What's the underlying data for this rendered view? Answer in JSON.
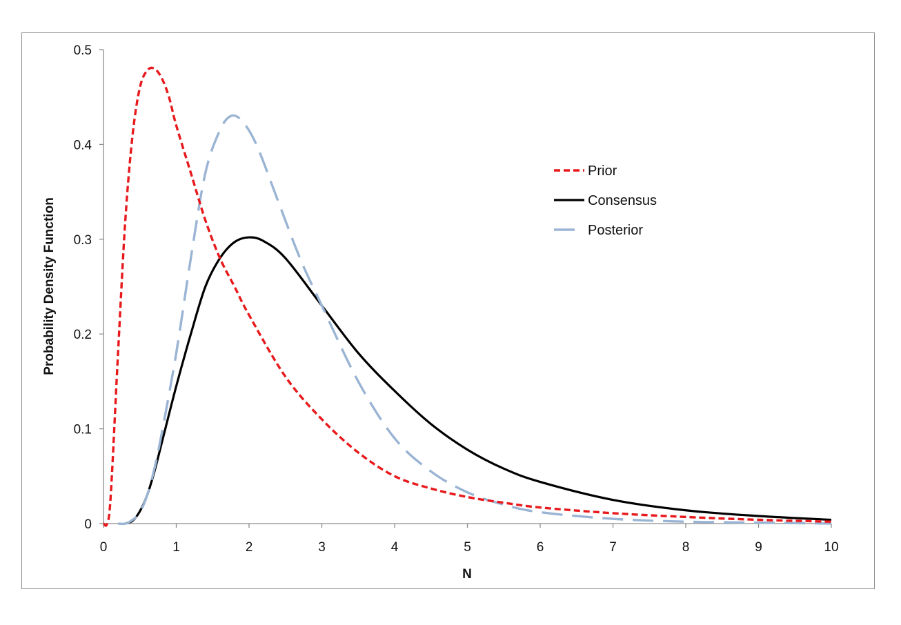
{
  "chart_data": {
    "type": "line",
    "xlabel": "N",
    "ylabel": "Probability Density Function",
    "xlim": [
      0,
      10
    ],
    "ylim": [
      0,
      0.5
    ],
    "x_ticks": [
      "0",
      "1",
      "2",
      "3",
      "4",
      "5",
      "6",
      "7",
      "8",
      "9",
      "10"
    ],
    "y_ticks": [
      "0",
      "0.1",
      "0.2",
      "0.3",
      "0.4",
      "0.5"
    ],
    "grid": false,
    "legend_position": "right",
    "series": [
      {
        "name": "Prior",
        "color": "#e8191c",
        "style": "short-dash",
        "x": [
          0,
          0.05,
          0.1,
          0.2,
          0.3,
          0.4,
          0.5,
          0.6,
          0.7,
          0.8,
          0.9,
          1.0,
          1.2,
          1.4,
          1.6,
          1.8,
          2.0,
          2.5,
          3.0,
          3.5,
          4.0,
          4.5,
          5.0,
          5.5,
          6.0,
          7.0,
          8.0,
          9.0,
          10.0
        ],
        "y": [
          0,
          0.0,
          0.03,
          0.18,
          0.32,
          0.41,
          0.46,
          0.478,
          0.48,
          0.47,
          0.45,
          0.42,
          0.37,
          0.32,
          0.28,
          0.25,
          0.22,
          0.155,
          0.11,
          0.075,
          0.05,
          0.037,
          0.028,
          0.022,
          0.017,
          0.011,
          0.007,
          0.004,
          0.002
        ]
      },
      {
        "name": "Consensus",
        "color": "#000000",
        "style": "solid",
        "x": [
          0.3,
          0.4,
          0.5,
          0.6,
          0.7,
          0.8,
          1.0,
          1.2,
          1.4,
          1.6,
          1.8,
          2.0,
          2.2,
          2.5,
          3.0,
          3.5,
          4.0,
          4.5,
          5.0,
          5.5,
          6.0,
          7.0,
          8.0,
          9.0,
          10.0
        ],
        "y": [
          0,
          0.003,
          0.013,
          0.03,
          0.055,
          0.085,
          0.145,
          0.2,
          0.25,
          0.28,
          0.297,
          0.302,
          0.298,
          0.28,
          0.23,
          0.18,
          0.14,
          0.105,
          0.078,
          0.058,
          0.044,
          0.025,
          0.014,
          0.008,
          0.004
        ]
      },
      {
        "name": "Posterior",
        "color": "#9ab4d4",
        "style": "long-dash",
        "x": [
          0.2,
          0.3,
          0.4,
          0.5,
          0.6,
          0.7,
          0.8,
          1.0,
          1.2,
          1.4,
          1.6,
          1.75,
          1.9,
          2.1,
          2.4,
          2.7,
          3.0,
          3.5,
          4.0,
          4.5,
          5.0,
          5.5,
          6.0,
          7.0,
          8.0,
          9.0,
          10.0
        ],
        "y": [
          0,
          0.0,
          0.004,
          0.012,
          0.03,
          0.058,
          0.095,
          0.18,
          0.28,
          0.37,
          0.415,
          0.43,
          0.425,
          0.4,
          0.34,
          0.28,
          0.23,
          0.15,
          0.09,
          0.055,
          0.033,
          0.02,
          0.012,
          0.005,
          0.002,
          0.001,
          0.0
        ]
      }
    ]
  }
}
